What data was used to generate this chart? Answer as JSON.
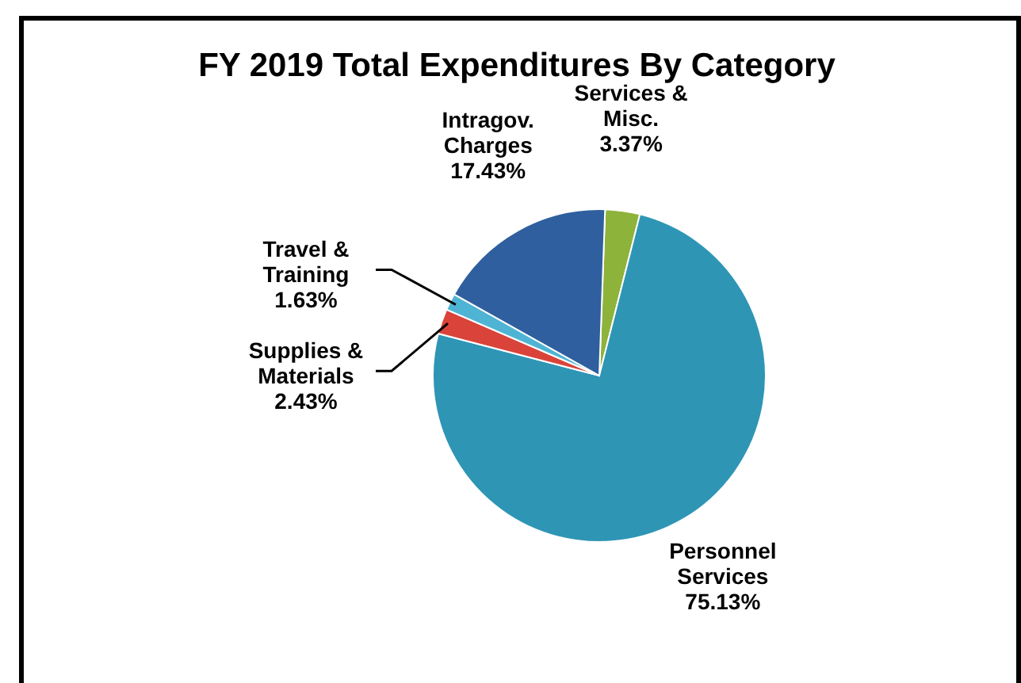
{
  "chart_data": {
    "type": "pie",
    "title": "FY 2019 Total Expenditures By Category",
    "categories": [
      "Services & Misc.",
      "Personnel Services",
      "Supplies & Materials",
      "Travel & Training",
      "Intragov. Charges"
    ],
    "values": [
      3.37,
      75.13,
      2.43,
      1.63,
      17.43
    ],
    "colors": [
      "#8db33a",
      "#2e95b5",
      "#d9433a",
      "#4fb4d4",
      "#2f5f9e"
    ],
    "value_labels": [
      "3.37%",
      "75.13%",
      "2.43%",
      "1.63%",
      "17.43%"
    ]
  }
}
